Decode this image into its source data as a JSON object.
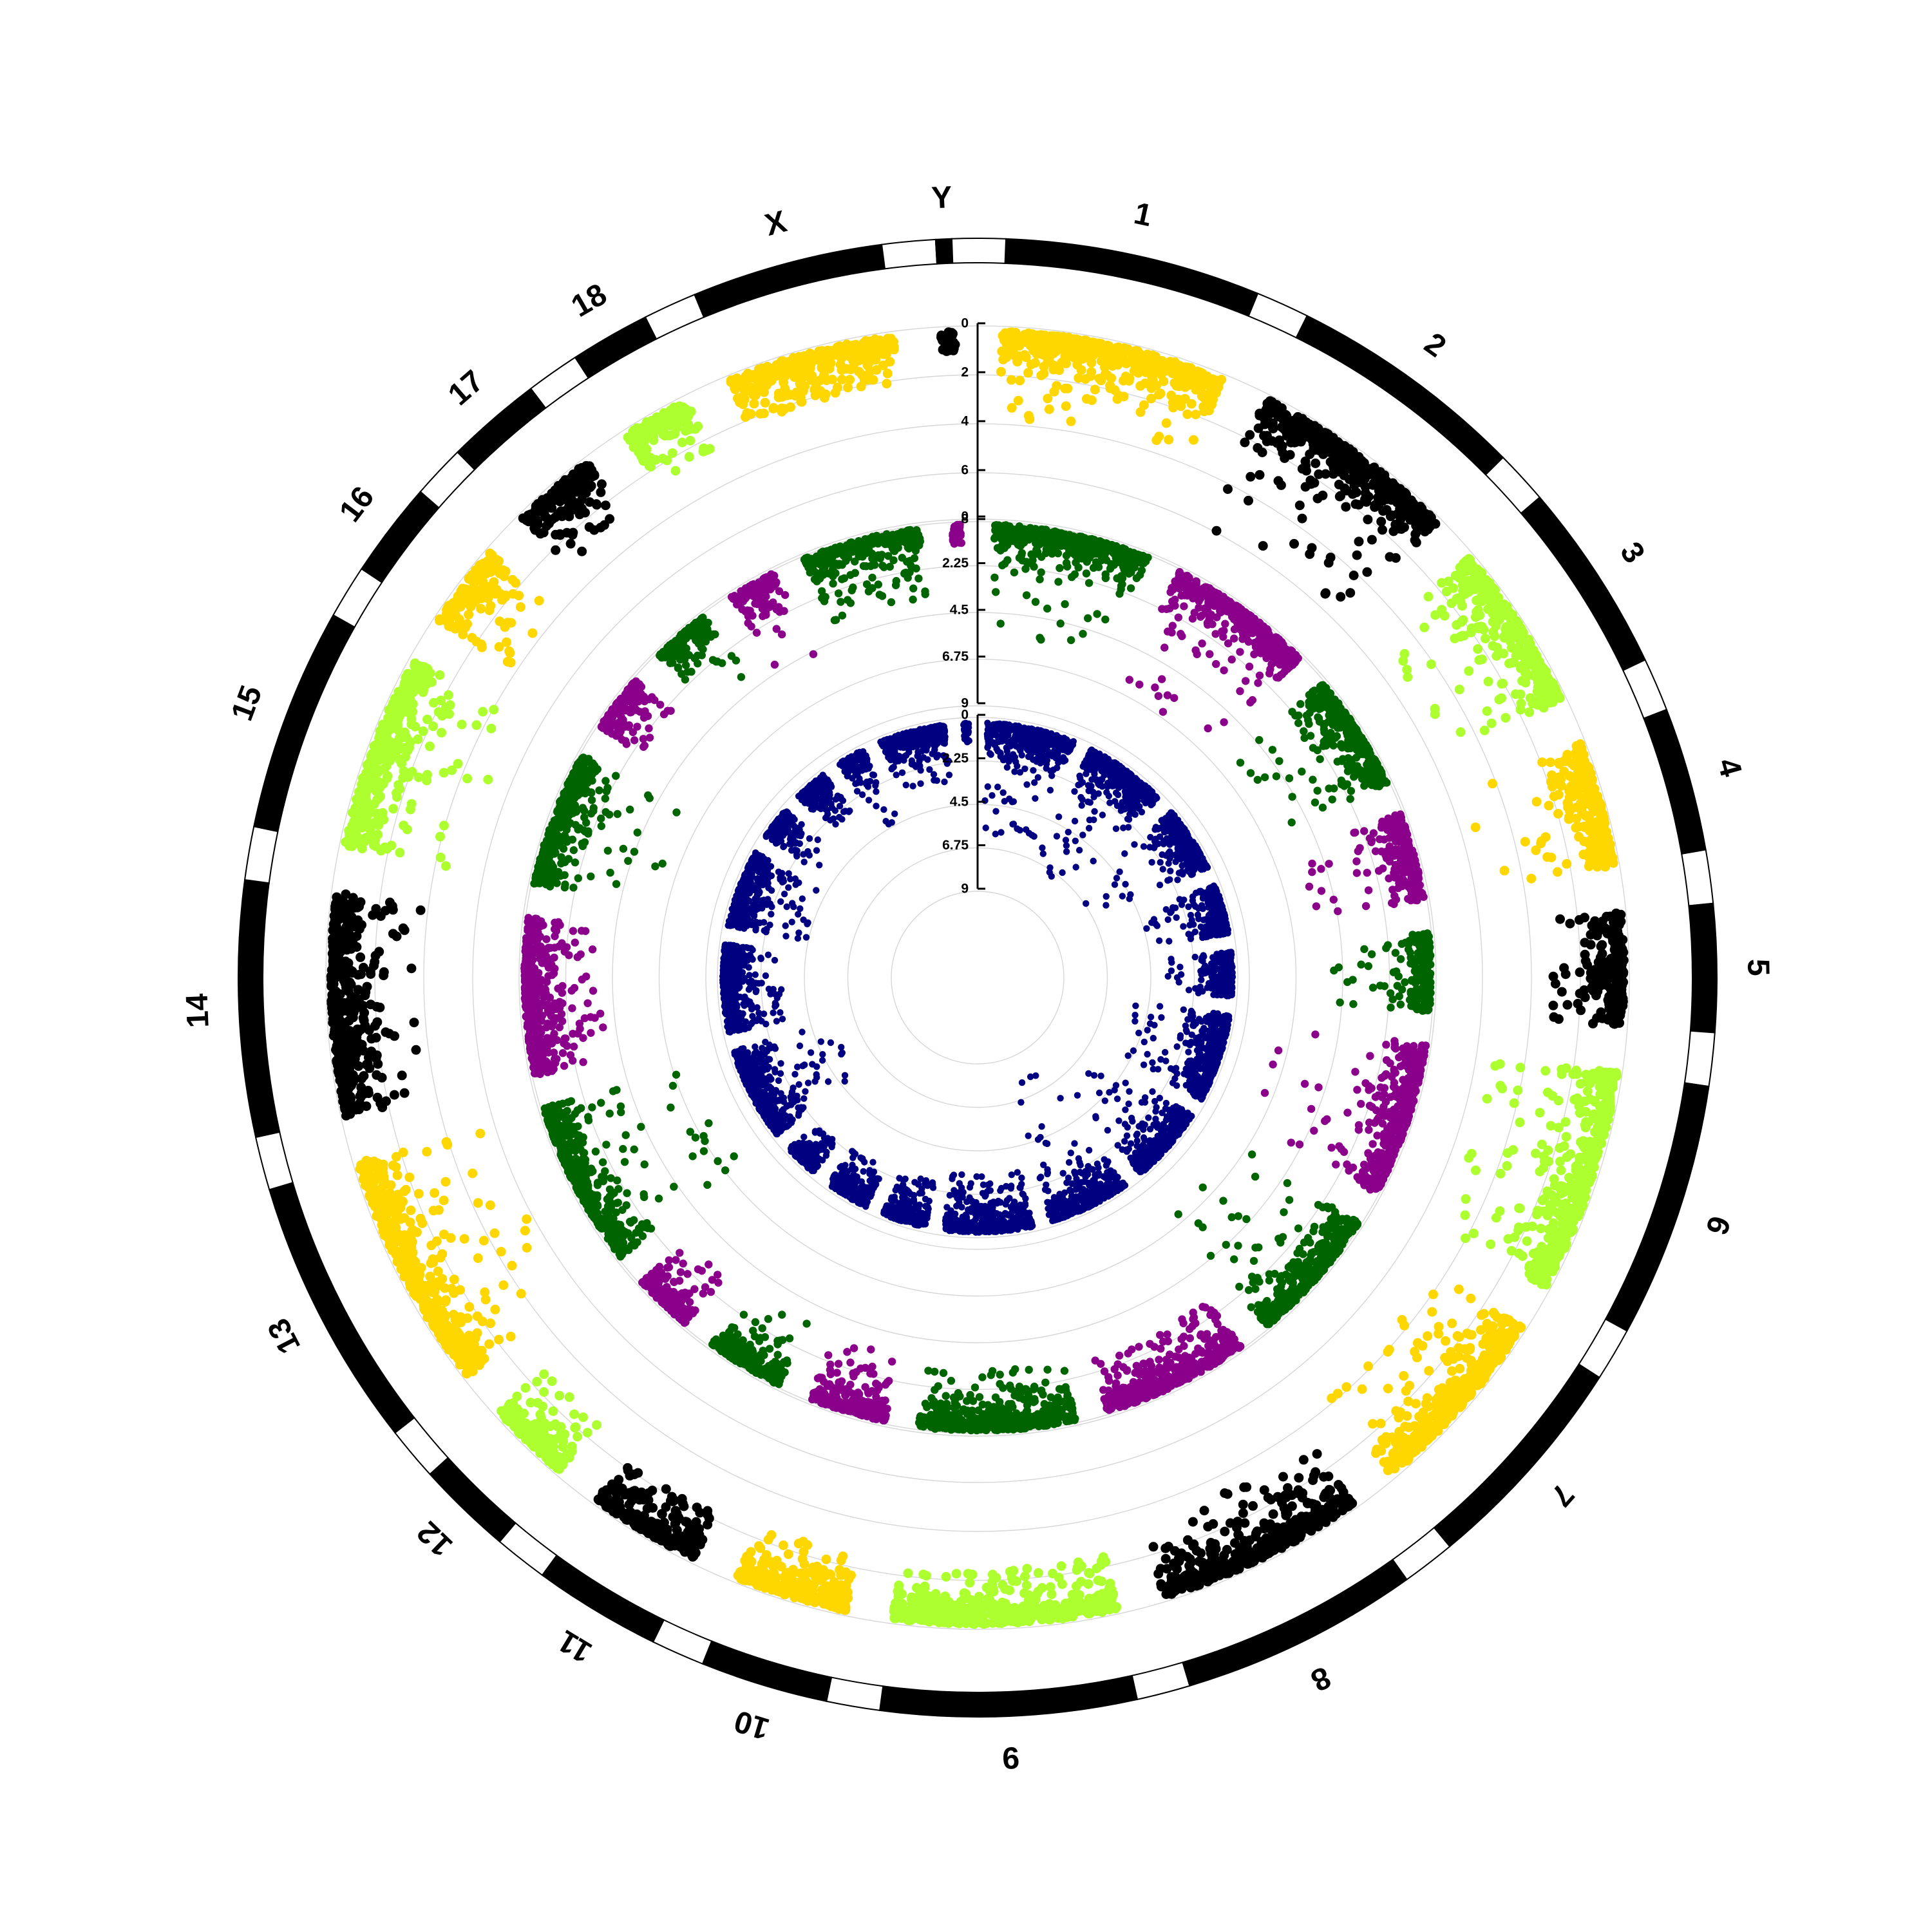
{
  "chart_data": {
    "type": "scatter",
    "subtype": "circular-manhattan",
    "title": "",
    "chromosomes": [
      {
        "name": "1",
        "size": 160
      },
      {
        "name": "2",
        "size": 150
      },
      {
        "name": "3",
        "size": 120
      },
      {
        "name": "4",
        "size": 90
      },
      {
        "name": "5",
        "size": 80
      },
      {
        "name": "6",
        "size": 160
      },
      {
        "name": "7",
        "size": 140
      },
      {
        "name": "8",
        "size": 150
      },
      {
        "name": "9",
        "size": 160
      },
      {
        "name": "10",
        "size": 80
      },
      {
        "name": "11",
        "size": 80
      },
      {
        "name": "12",
        "size": 60
      },
      {
        "name": "13",
        "size": 170
      },
      {
        "name": "14",
        "size": 160
      },
      {
        "name": "15",
        "size": 140
      },
      {
        "name": "16",
        "size": 60
      },
      {
        "name": "17",
        "size": 60
      },
      {
        "name": "18",
        "size": 50
      },
      {
        "name": "X",
        "size": 120
      },
      {
        "name": "Y",
        "size": 10
      }
    ],
    "rings": [
      {
        "axis_ticks": [
          "0",
          "2",
          "4",
          "6",
          "8"
        ],
        "ylim": [
          0,
          8
        ],
        "colors": [
          "#FFD700",
          "#000000",
          "#ADFF2F",
          "#FFD700",
          "#000000",
          "#ADFF2F",
          "#FFD700",
          "#000000",
          "#ADFF2F",
          "#FFD700",
          "#000000",
          "#ADFF2F",
          "#FFD700",
          "#000000",
          "#ADFF2F",
          "#FFD700",
          "#000000",
          "#ADFF2F",
          "#FFD700",
          "#000000"
        ],
        "peak_values": [
          3.6,
          5.8,
          5.2,
          5.6,
          2.9,
          5.1,
          4.3,
          3.1,
          2.2,
          2.4,
          2.0,
          2.8,
          5.9,
          3.6,
          4.9,
          3.5,
          2.7,
          2.4,
          2.0,
          0.8
        ]
      },
      {
        "axis_ticks": [
          "0",
          "2.25",
          "4.5",
          "6.75",
          "9"
        ],
        "ylim": [
          0,
          9
        ],
        "colors": [
          "#006400",
          "#8B008B",
          "#006400",
          "#8B008B",
          "#006400",
          "#8B008B",
          "#006400",
          "#8B008B",
          "#006400",
          "#8B008B",
          "#006400",
          "#8B008B",
          "#006400",
          "#8B008B",
          "#006400",
          "#8B008B",
          "#006400",
          "#8B008B",
          "#006400",
          "#8B008B"
        ],
        "peak_values": [
          5.6,
          6.4,
          5.5,
          5.9,
          5.0,
          7.6,
          7.1,
          2.7,
          3.0,
          3.4,
          3.3,
          3.1,
          7.3,
          3.7,
          6.1,
          2.3,
          4.3,
          4.5,
          3.4,
          1.0
        ]
      },
      {
        "axis_ticks": [
          "0",
          "2.25",
          "4.5",
          "6.75",
          "9"
        ],
        "ylim": [
          0,
          9
        ],
        "colors": [
          "#000080",
          "#000080",
          "#000080",
          "#000080",
          "#000080",
          "#000080",
          "#000080",
          "#000080",
          "#000080",
          "#000080",
          "#000080",
          "#000080",
          "#000080",
          "#000080",
          "#000080",
          "#000080",
          "#000080",
          "#000080",
          "#000080",
          "#000080"
        ],
        "peak_values": [
          5.8,
          7.0,
          6.9,
          4.2,
          3.5,
          4.9,
          6.0,
          8.0,
          3.0,
          2.4,
          2.3,
          2.0,
          5.5,
          3.1,
          4.1,
          3.2,
          2.5,
          4.3,
          3.0,
          1.0
        ]
      }
    ]
  }
}
